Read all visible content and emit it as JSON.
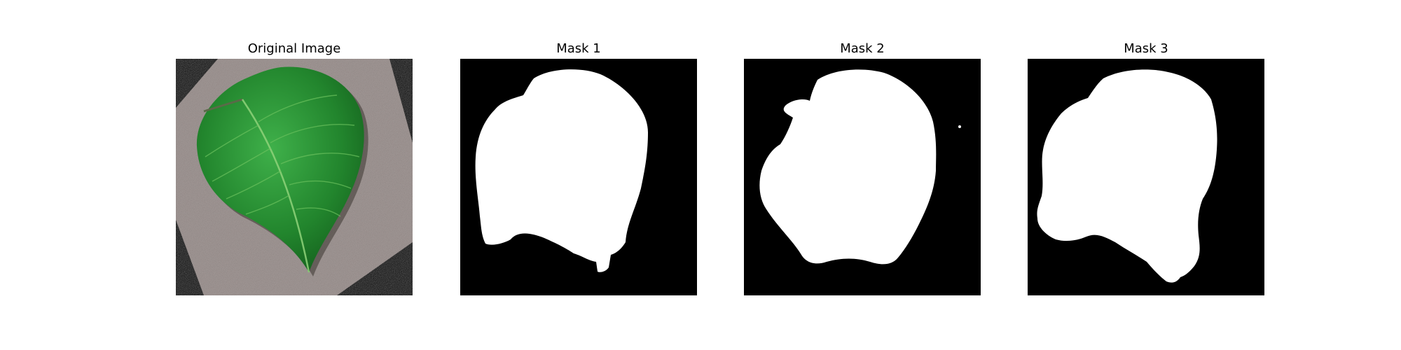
{
  "figure": {
    "panels": [
      {
        "title": "Original Image",
        "kind": "photo"
      },
      {
        "title": "Mask 1",
        "kind": "mask"
      },
      {
        "title": "Mask 2",
        "kind": "mask"
      },
      {
        "title": "Mask 3",
        "kind": "mask"
      }
    ]
  }
}
